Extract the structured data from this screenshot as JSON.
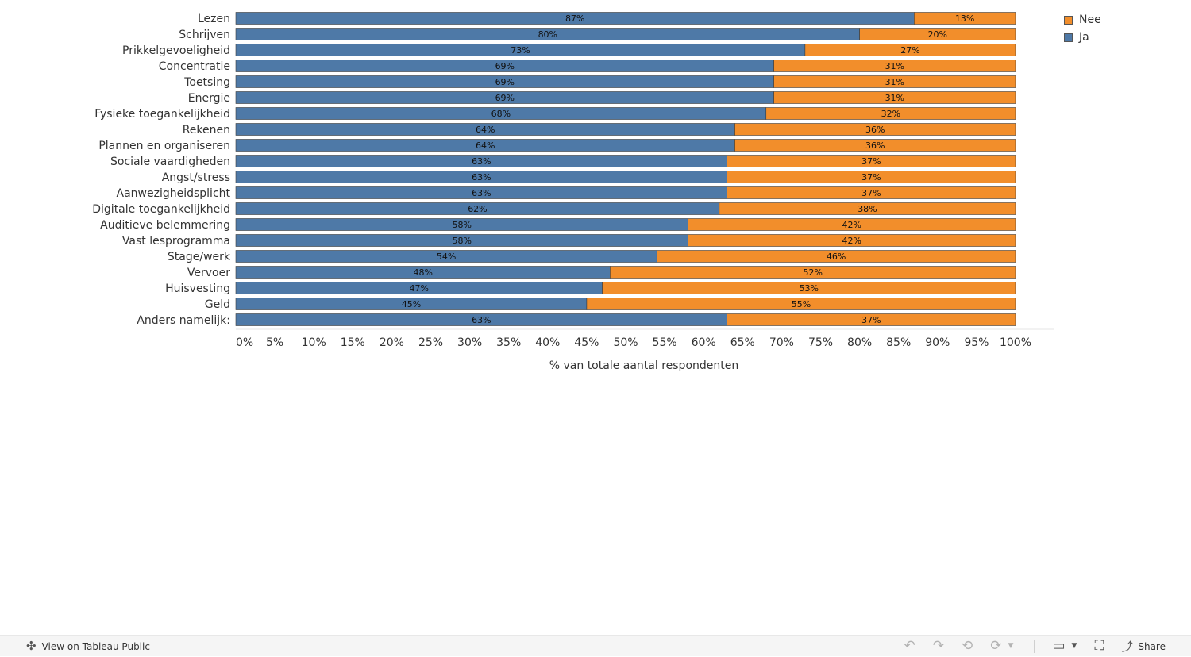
{
  "chart_data": {
    "type": "bar",
    "orientation": "horizontal",
    "stacked": true,
    "categories": [
      "Lezen",
      "Schrijven",
      "Prikkelgevoeligheid",
      "Concentratie",
      "Toetsing",
      "Energie",
      "Fysieke toegankelijkheid",
      "Rekenen",
      "Plannen en organiseren",
      "Sociale vaardigheden",
      "Angst/stress",
      "Aanwezigheidsplicht",
      "Digitale toegankelijkheid",
      "Auditieve belemmering",
      "Vast lesprogramma",
      "Stage/werk",
      "Vervoer",
      "Huisvesting",
      "Geld",
      "Anders namelijk:"
    ],
    "series": [
      {
        "name": "Ja",
        "color": "#4e79a7",
        "values": [
          87,
          80,
          73,
          69,
          69,
          69,
          68,
          64,
          64,
          63,
          63,
          63,
          62,
          58,
          58,
          54,
          48,
          47,
          45,
          63
        ]
      },
      {
        "name": "Nee",
        "color": "#f28e2b",
        "values": [
          13,
          20,
          27,
          31,
          31,
          31,
          32,
          36,
          36,
          37,
          37,
          37,
          38,
          42,
          42,
          46,
          52,
          53,
          55,
          37
        ]
      }
    ],
    "xlabel": "% van totale aantal respondenten",
    "ylabel": "",
    "xlim": [
      0,
      100
    ],
    "x_ticks": [
      "0%",
      "5%",
      "10%",
      "15%",
      "20%",
      "25%",
      "30%",
      "35%",
      "40%",
      "45%",
      "50%",
      "55%",
      "60%",
      "65%",
      "70%",
      "75%",
      "80%",
      "85%",
      "90%",
      "95%",
      "100%"
    ],
    "legend": {
      "position": "top-right",
      "entries": [
        "Nee",
        "Ja"
      ]
    }
  },
  "legend": {
    "items": [
      {
        "label": "Nee",
        "color": "#f28e2b"
      },
      {
        "label": "Ja",
        "color": "#4e79a7"
      }
    ]
  },
  "footer": {
    "view_label": "View on Tableau Public",
    "share_label": "Share",
    "view_icon": "tableau-logo-icon",
    "toolbar_icons": [
      "undo-icon",
      "redo-icon",
      "revert-icon",
      "refresh-icon",
      "pause-icon",
      "comment-icon",
      "fullscreen-icon",
      "share-icon"
    ]
  }
}
